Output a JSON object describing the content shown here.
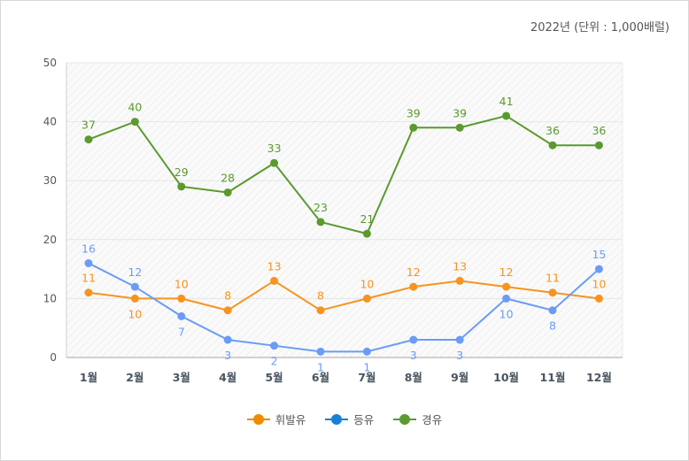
{
  "unit_note": "2022년 (단위 : 1,000배럴)",
  "chart_data": {
    "type": "line",
    "categories": [
      "1월",
      "2월",
      "3월",
      "4월",
      "5월",
      "6월",
      "7월",
      "8월",
      "9월",
      "10월",
      "11월",
      "12월"
    ],
    "ylim": [
      0,
      50
    ],
    "yticks": [
      0,
      10,
      20,
      30,
      40,
      50
    ],
    "grid": true,
    "legend_position": "bottom",
    "series": [
      {
        "name": "휘발유",
        "color": "#f7931e",
        "legend_color": "#f08a00",
        "values": [
          11,
          10,
          10,
          8,
          13,
          8,
          10,
          12,
          13,
          12,
          11,
          10
        ]
      },
      {
        "name": "등유",
        "color": "#6b9cf5",
        "legend_color": "#1a7fd6",
        "values": [
          16,
          12,
          7,
          3,
          2,
          1,
          1,
          3,
          3,
          10,
          8,
          15
        ]
      },
      {
        "name": "경유",
        "color": "#5a9a2e",
        "legend_color": "#5a9a2e",
        "values": [
          37,
          40,
          29,
          28,
          33,
          23,
          21,
          39,
          39,
          41,
          36,
          36
        ]
      }
    ]
  }
}
